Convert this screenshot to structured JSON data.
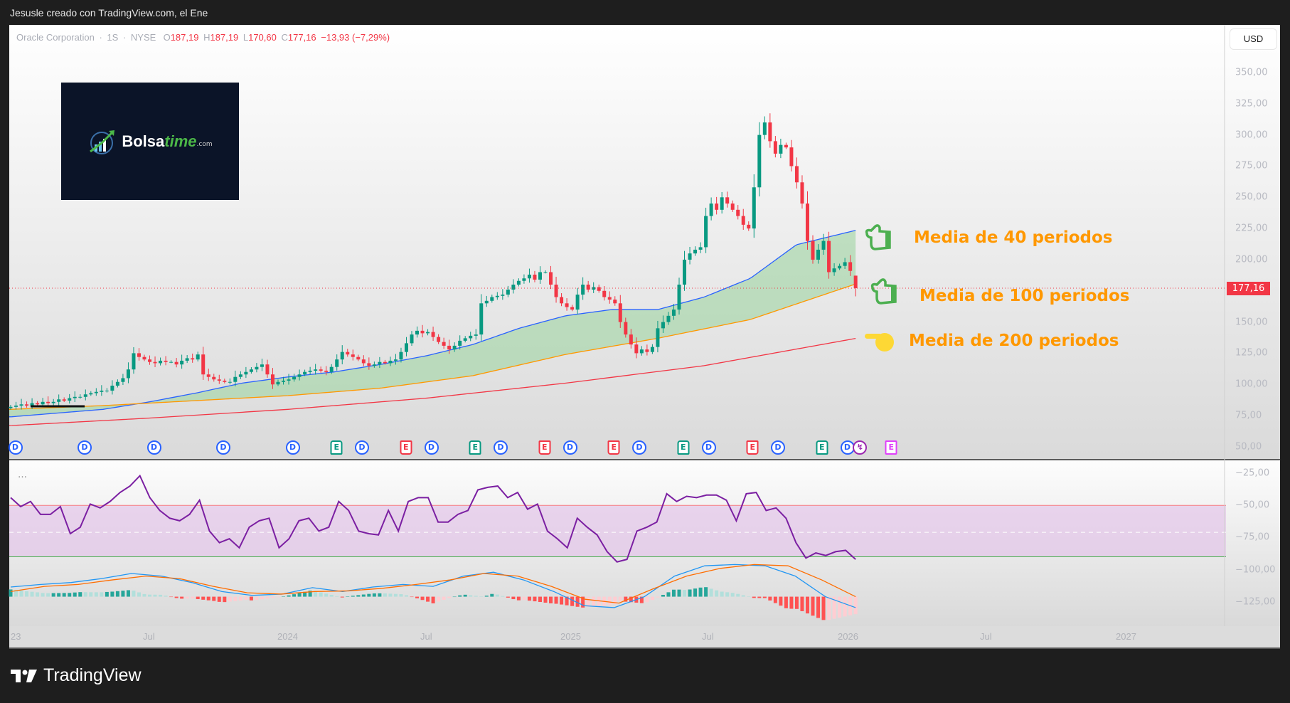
{
  "window": {
    "title": "Jesusle creado con TradingView.com, el Ene"
  },
  "legend": {
    "symbol": "Oracle Corporation",
    "interval": "1S",
    "exchange": "NYSE",
    "sep": "·",
    "o_label": "O",
    "o": "187,19",
    "h_label": "H",
    "h": "187,19",
    "l_label": "L",
    "l": "170,60",
    "c_label": "C",
    "c": "177,16",
    "change": "−13,93 (−7,29%)"
  },
  "currency": "USD",
  "last_price": {
    "value": 177.16,
    "label": "177,16"
  },
  "logo": {
    "brand": "Bolsa",
    "brand_accent": "time",
    "suffix": ".com"
  },
  "annotations": [
    {
      "label": "Media de 40 periodos",
      "icon": "pointing-hand-outline-icon"
    },
    {
      "label": "Media de 100 periodos",
      "icon": "pointing-hand-outline-icon"
    },
    {
      "label": "Media de 200 periodos",
      "icon": "pointing-hand-left-icon"
    }
  ],
  "indicator_menu": "…",
  "footer": {
    "brand": "TradingView"
  },
  "colors": {
    "up": "#089981",
    "down": "#f23645",
    "ma40": "#2962ff",
    "ma100": "#ff9800",
    "ma200": "#f23645",
    "fill": "#a5d6a7",
    "osc": "#7b1fa2",
    "band": "#e1bee7",
    "macd": "#2196f3",
    "signal": "#ff6d00",
    "annotation": "#ff9800"
  },
  "chart_data": {
    "type": "candlestick",
    "interval": "weekly",
    "start": "2023-01",
    "price_axis": {
      "ticks": [
        350,
        325,
        300,
        275,
        250,
        225,
        200,
        150,
        125,
        100,
        75,
        50
      ],
      "labels": [
        "350,00",
        "325,00",
        "300,00",
        "275,00",
        "250,00",
        "225,00",
        "200,00",
        "150,00",
        "125,00",
        "100,00",
        "75,00",
        "50,00"
      ]
    },
    "time_axis": {
      "labels": [
        "23",
        "Jul",
        "2024",
        "Jul",
        "2025",
        "Jul",
        "2026",
        "Jul",
        "2027"
      ]
    },
    "closes": [
      82,
      83,
      84,
      83,
      85,
      84,
      86,
      85,
      86,
      88,
      87,
      89,
      90,
      90,
      92,
      93,
      94,
      95,
      95,
      99,
      102,
      105,
      112,
      125,
      122,
      120,
      118,
      117,
      119,
      118,
      118,
      116,
      119,
      121,
      120,
      124,
      108,
      106,
      104,
      103,
      102,
      102,
      106,
      108,
      110,
      112,
      114,
      116,
      108,
      100,
      102,
      103,
      104,
      106,
      108,
      110,
      111,
      112,
      111,
      110,
      114,
      120,
      126,
      124,
      122,
      120,
      117,
      115,
      116,
      118,
      117,
      119,
      120,
      126,
      133,
      140,
      143,
      141,
      142,
      138,
      134,
      131,
      128,
      131,
      135,
      137,
      139,
      140,
      165,
      167,
      170,
      171,
      172,
      176,
      180,
      183,
      185,
      188,
      184,
      190,
      190,
      180,
      170,
      165,
      162,
      160,
      172,
      180,
      176,
      178,
      175,
      170,
      168,
      165,
      150,
      140,
      132,
      125,
      128,
      126,
      130,
      145,
      150,
      155,
      160,
      180,
      200,
      205,
      208,
      210,
      235,
      245,
      240,
      250,
      245,
      240,
      235,
      228,
      225,
      258,
      300,
      310,
      295,
      285,
      292,
      290,
      275,
      262,
      245,
      215,
      200,
      208,
      215,
      190,
      193,
      195,
      198,
      191,
      177.16
    ],
    "last_candle": {
      "open": 187.19,
      "high": 187.19,
      "low": 170.6,
      "close": 177.16
    },
    "moving_averages": [
      {
        "name": "Media de 40 periodos",
        "points": [
          [
            "2023-01",
            74
          ],
          [
            "2023-03",
            77
          ],
          [
            "2023-05",
            80
          ],
          [
            "2023-07",
            86
          ],
          [
            "2023-09",
            93
          ],
          [
            "2023-11",
            101
          ],
          [
            "2024-01",
            106
          ],
          [
            "2024-03",
            110
          ],
          [
            "2024-05",
            116
          ],
          [
            "2024-07",
            123
          ],
          [
            "2024-09",
            132
          ],
          [
            "2024-11",
            145
          ],
          [
            "2025-01",
            155
          ],
          [
            "2025-03",
            160
          ],
          [
            "2025-05",
            160
          ],
          [
            "2025-07",
            170
          ],
          [
            "2025-09",
            185
          ],
          [
            "2025-11",
            212
          ],
          [
            "2026-01",
            221
          ]
        ]
      },
      {
        "name": "Media de 100 periodos",
        "points": [
          [
            "2023-01",
            80
          ],
          [
            "2023-05",
            83
          ],
          [
            "2023-09",
            87
          ],
          [
            "2024-01",
            91
          ],
          [
            "2024-05",
            97
          ],
          [
            "2024-09",
            107
          ],
          [
            "2025-01",
            124
          ],
          [
            "2025-05",
            137
          ],
          [
            "2025-09",
            152
          ],
          [
            "2026-01",
            177
          ]
        ]
      },
      {
        "name": "Media de 200 periodos",
        "points": [
          [
            "2023-01",
            67
          ],
          [
            "2023-07",
            73
          ],
          [
            "2024-01",
            80
          ],
          [
            "2024-07",
            89
          ],
          [
            "2025-01",
            101
          ],
          [
            "2025-07",
            115
          ],
          [
            "2026-01",
            135
          ]
        ]
      }
    ],
    "events": [
      [
        "D",
        "2023-01"
      ],
      [
        "D",
        "2023-04"
      ],
      [
        "D",
        "2023-07"
      ],
      [
        "D",
        "2023-10"
      ],
      [
        "D",
        "2024-01"
      ],
      [
        "Ep",
        "2024-03"
      ],
      [
        "D",
        "2024-04"
      ],
      [
        "En",
        "2024-06"
      ],
      [
        "D",
        "2024-07"
      ],
      [
        "Ep",
        "2024-09"
      ],
      [
        "D",
        "2024-10"
      ],
      [
        "En",
        "2024-12"
      ],
      [
        "D",
        "2025-01"
      ],
      [
        "En",
        "2025-03"
      ],
      [
        "D",
        "2025-04"
      ],
      [
        "Ep",
        "2025-06"
      ],
      [
        "D",
        "2025-07"
      ],
      [
        "En",
        "2025-09"
      ],
      [
        "D",
        "2025-10"
      ],
      [
        "Ep",
        "2025-12"
      ],
      [
        "D",
        "2026-01"
      ],
      [
        "S",
        "2026-01"
      ],
      [
        "Ef",
        "2026-03"
      ]
    ],
    "lower_pane": {
      "axis": {
        "ticks": [
          -25,
          -50,
          -75,
          -100,
          -125
        ],
        "labels": [
          "−25,00",
          "−50,00",
          "−75,00",
          "−100,00",
          "−125,00"
        ]
      },
      "band": [
        -50,
        -90
      ],
      "band_mid": -71,
      "oscillator": [
        -44,
        -51,
        -47,
        -57,
        -57,
        -51,
        -72,
        -67,
        -49,
        -52,
        -47,
        -40,
        -35,
        -27,
        -44,
        -54,
        -60,
        -62,
        -57,
        -46,
        -70,
        -79,
        -76,
        -83,
        -67,
        -62,
        -60,
        -83,
        -76,
        -62,
        -60,
        -70,
        -67,
        -47,
        -54,
        -70,
        -72,
        -73,
        -54,
        -70,
        -47,
        -44,
        -44,
        -63,
        -63,
        -57,
        -54,
        -38,
        -36,
        -35,
        -44,
        -40,
        -53,
        -49,
        -70,
        -76,
        -83,
        -60,
        -67,
        -73,
        -86,
        -94,
        -92,
        -70,
        -67,
        -63,
        -41,
        -47,
        -43,
        -44,
        -42,
        -42,
        -46,
        -62,
        -41,
        -40,
        -54,
        -52,
        -60,
        -79,
        -91,
        -87,
        -89,
        -86,
        -85,
        -92
      ],
      "macd": [
        -113.5,
        -111.5,
        -110,
        -107,
        -103,
        -105,
        -110,
        -117,
        -120,
        -119,
        -114,
        -117,
        -113.5,
        -111.5,
        -113,
        -105,
        -102,
        -108,
        -117,
        -128,
        -129.5,
        -121,
        -105,
        -97,
        -96,
        -97,
        -105,
        -121,
        -129.5
      ],
      "signal": [
        -117,
        -113,
        -111.5,
        -108,
        -105,
        -107,
        -113,
        -118,
        -119,
        -117,
        -116.5,
        -114.5,
        -111.5,
        -108,
        -103,
        -105,
        -113,
        -123,
        -126,
        -115,
        -105,
        -99,
        -96,
        -97,
        -108,
        -121
      ],
      "histogram_base": -121
    }
  }
}
